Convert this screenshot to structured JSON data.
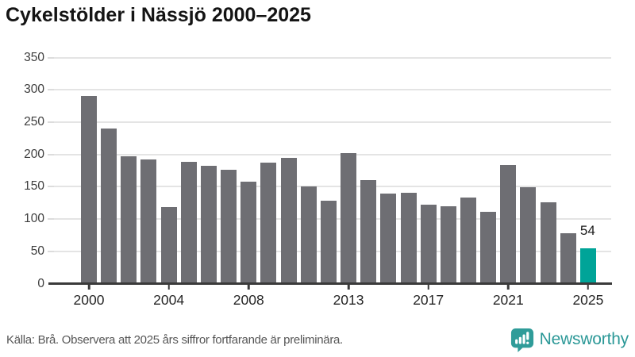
{
  "title": "Cykelstölder i Nässjö 2000–2025",
  "footer": {
    "source": "Källa: Brå. Observera att 2025 års siffror fortfarande är preliminära."
  },
  "branding": {
    "name": "Newsworthy",
    "icon": "newsworthy-speech-bubble-chart-icon",
    "color": "#2b9897"
  },
  "colors": {
    "bar": "#6e6e73",
    "highlight": "#00a498",
    "gridline": "#e4e4e4",
    "axis": "#3a3a3a"
  },
  "chart_data": {
    "type": "bar",
    "title": "Cykelstölder i Nässjö 2000–2025",
    "categories": [
      2000,
      2001,
      2002,
      2003,
      2004,
      2005,
      2006,
      2007,
      2008,
      2009,
      2010,
      2011,
      2012,
      2013,
      2014,
      2015,
      2016,
      2017,
      2018,
      2019,
      2020,
      2021,
      2022,
      2023,
      2024,
      2025
    ],
    "values": [
      290,
      240,
      196,
      192,
      118,
      188,
      182,
      176,
      157,
      187,
      194,
      150,
      128,
      202,
      160,
      139,
      140,
      122,
      119,
      133,
      110,
      183,
      149,
      125,
      78,
      54
    ],
    "highlight_category": 2025,
    "value_labels": {
      "2025": "54"
    },
    "x_tick_years": [
      2000,
      2004,
      2008,
      2013,
      2017,
      2021,
      2025
    ],
    "y_ticks": [
      0,
      50,
      100,
      150,
      200,
      250,
      300,
      350
    ],
    "ylim": [
      0,
      350
    ],
    "xlabel": "",
    "ylabel": "",
    "grid": "horizontal",
    "legend": "none"
  }
}
